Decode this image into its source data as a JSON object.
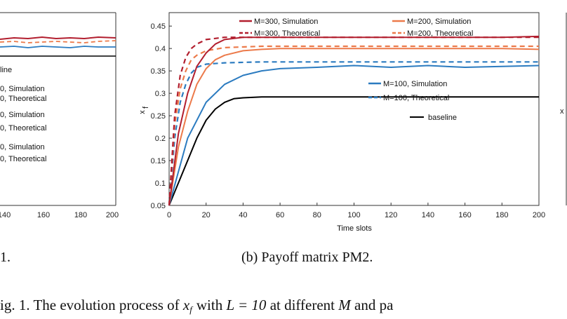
{
  "colors": {
    "m300": "#b21e2e",
    "m200": "#ec7a4a",
    "m100": "#2b7bc0",
    "baseline": "#000000",
    "axis": "#333333"
  },
  "left_panel": {
    "x_ticks": [
      "140",
      "160",
      "180",
      "200"
    ],
    "legend": [
      "line",
      "0, Simulation",
      "0, Theoretical",
      "0, Simulation",
      "0, Theoretical",
      "0, Simulation",
      "0, Theoretical"
    ],
    "caption": "1."
  },
  "right_panel": {
    "y_label_main": "x",
    "y_label_sub": "f"
  },
  "caption": {
    "subfigure": "(b)  Payoff matrix PM2.",
    "fig_prefix": "ig. 1.  The evolution process of",
    "fig_var": "x",
    "fig_var_sub": "f",
    "fig_mid": "with",
    "fig_eq": "L = 10",
    "fig_at": "at different",
    "fig_M": "M",
    "fig_end": "and pa"
  },
  "chart_data": {
    "type": "line",
    "title": "",
    "xlabel": "Time slots",
    "ylabel": "x_f",
    "xlim": [
      0,
      200
    ],
    "ylim": [
      0.05,
      0.48
    ],
    "x_ticks": [
      "0",
      "20",
      "40",
      "60",
      "80",
      "100",
      "120",
      "140",
      "160",
      "180",
      "200"
    ],
    "y_ticks": [
      "0.05",
      "0.1",
      "0.15",
      "0.2",
      "0.25",
      "0.3",
      "0.35",
      "0.4",
      "0.45"
    ],
    "grid": false,
    "series": [
      {
        "name": "M=300, Simulation",
        "style": "solid",
        "color_key": "m300",
        "x": [
          0,
          5,
          10,
          15,
          20,
          25,
          30,
          40,
          60,
          80,
          100,
          120,
          140,
          160,
          180,
          200
        ],
        "y": [
          0.05,
          0.21,
          0.3,
          0.36,
          0.39,
          0.41,
          0.42,
          0.425,
          0.425,
          0.425,
          0.425,
          0.425,
          0.425,
          0.425,
          0.425,
          0.427
        ]
      },
      {
        "name": "M=300, Theoretical",
        "style": "dashed",
        "color_key": "m300",
        "x": [
          0,
          3,
          6,
          9,
          12,
          15,
          20,
          30,
          50,
          100,
          150,
          200
        ],
        "y": [
          0.05,
          0.25,
          0.34,
          0.38,
          0.4,
          0.41,
          0.42,
          0.425,
          0.425,
          0.425,
          0.425,
          0.425
        ]
      },
      {
        "name": "M=200, Simulation",
        "style": "solid",
        "color_key": "m200",
        "x": [
          0,
          5,
          10,
          15,
          20,
          25,
          30,
          40,
          50,
          60,
          80,
          100,
          120,
          140,
          160,
          180,
          200
        ],
        "y": [
          0.05,
          0.18,
          0.26,
          0.32,
          0.355,
          0.375,
          0.385,
          0.395,
          0.398,
          0.4,
          0.4,
          0.4,
          0.4,
          0.4,
          0.4,
          0.4,
          0.398
        ]
      },
      {
        "name": "M=200, Theoretical",
        "style": "dashed",
        "color_key": "m200",
        "x": [
          0,
          3,
          6,
          9,
          12,
          15,
          20,
          30,
          50,
          100,
          150,
          200
        ],
        "y": [
          0.05,
          0.23,
          0.31,
          0.35,
          0.375,
          0.385,
          0.395,
          0.402,
          0.405,
          0.405,
          0.405,
          0.405
        ]
      },
      {
        "name": "M=100, Simulation",
        "style": "solid",
        "color_key": "m100",
        "x": [
          0,
          10,
          20,
          30,
          40,
          50,
          60,
          80,
          100,
          120,
          140,
          160,
          180,
          200
        ],
        "y": [
          0.05,
          0.2,
          0.28,
          0.32,
          0.34,
          0.35,
          0.355,
          0.358,
          0.362,
          0.358,
          0.362,
          0.358,
          0.36,
          0.362
        ]
      },
      {
        "name": "M=100, Theoretical",
        "style": "dashed",
        "color_key": "m100",
        "x": [
          0,
          3,
          6,
          9,
          12,
          15,
          20,
          30,
          50,
          100,
          150,
          200
        ],
        "y": [
          0.05,
          0.2,
          0.28,
          0.32,
          0.345,
          0.358,
          0.365,
          0.368,
          0.37,
          0.37,
          0.37,
          0.37
        ]
      },
      {
        "name": "baseline",
        "style": "solid",
        "color_key": "baseline",
        "x": [
          0,
          5,
          10,
          15,
          20,
          25,
          30,
          35,
          40,
          50,
          60,
          80,
          100,
          150,
          200
        ],
        "y": [
          0.05,
          0.1,
          0.15,
          0.2,
          0.24,
          0.265,
          0.28,
          0.288,
          0.29,
          0.292,
          0.292,
          0.292,
          0.292,
          0.292,
          0.292
        ]
      }
    ]
  }
}
